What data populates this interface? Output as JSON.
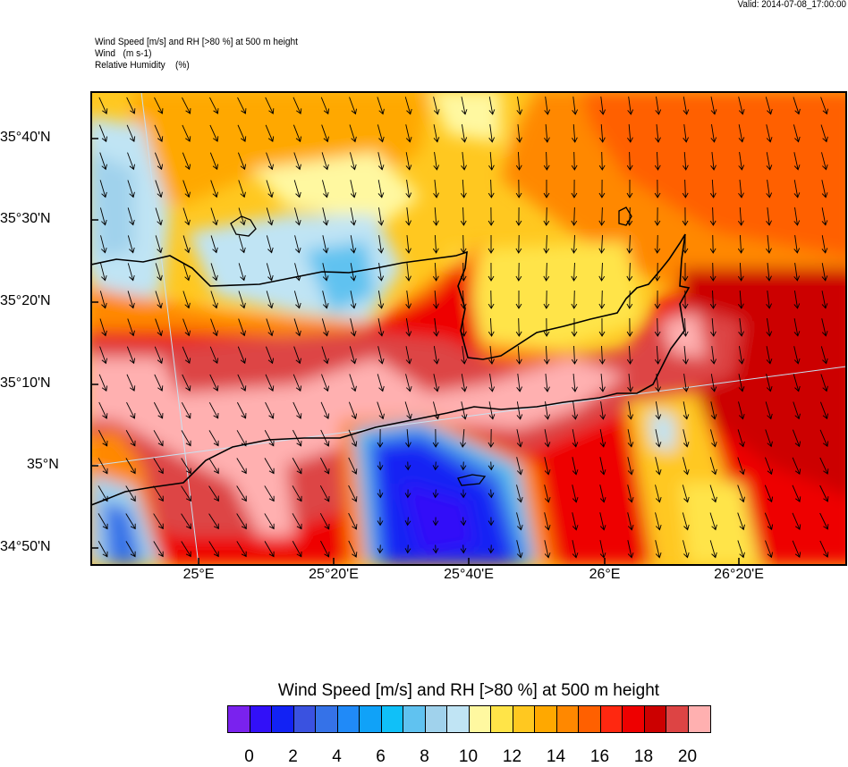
{
  "valid_time": "Valid: 2014-07-08_17:00:00",
  "titles": {
    "line1": "Wind Speed [m/s] and RH [>80 %] at 500 m height",
    "line2": "Wind   (m s-1)",
    "line3": "Relative Humidity    (%)"
  },
  "map": {
    "lat_labels": [
      "35°40'N",
      "35°30'N",
      "35°20'N",
      "35°10'N",
      "35°N",
      "34°50'N"
    ],
    "lon_labels": [
      "25°E",
      "25°20'E",
      "25°40'E",
      "26°E",
      "26°20'E"
    ],
    "wind_arrow_direction": "mostly toward south-southeast",
    "coastline_color": "#000000"
  },
  "colorbar": {
    "title": "Wind Speed [m/s] and RH [>80 %] at 500 m height",
    "colors": [
      "#7a22ee",
      "#3210f8",
      "#1222f4",
      "#3a52e0",
      "#3572e8",
      "#208af8",
      "#10a2f8",
      "#10c0f8",
      "#60c2f0",
      "#a0d2ec",
      "#c0e4f4",
      "#fff8a0",
      "#ffe448",
      "#ffc820",
      "#ffa800",
      "#ff8800",
      "#ff6000",
      "#ff2810",
      "#ee0000",
      "#cc0000",
      "#dd4444",
      "#ffb0b0"
    ],
    "labels": [
      "0",
      "2",
      "4",
      "6",
      "8",
      "10",
      "12",
      "14",
      "16",
      "18",
      "20"
    ]
  }
}
